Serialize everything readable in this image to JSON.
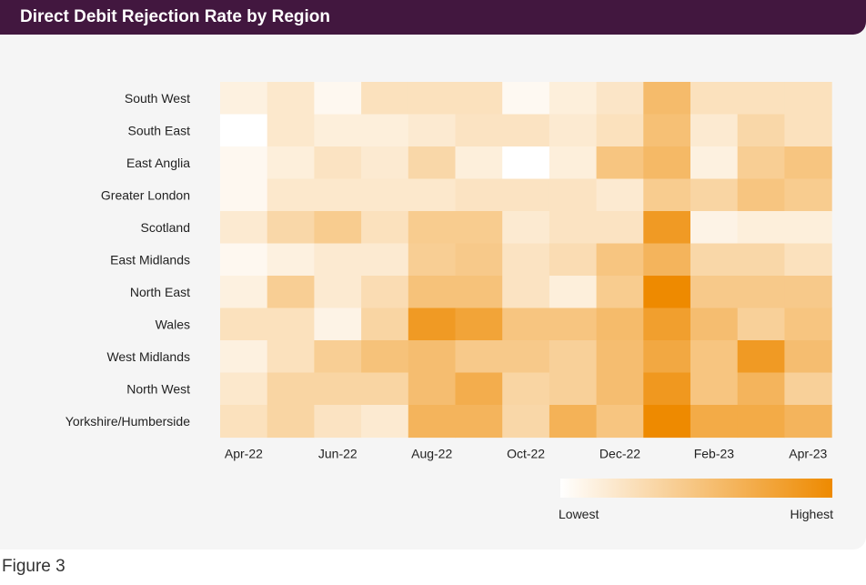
{
  "title": "Direct Debit Rejection Rate by Region",
  "figure_caption": "Figure 3",
  "legend": {
    "low_label": "Lowest",
    "high_label": "Highest",
    "low_color": "#ffffff",
    "high_color": "#ee8a00"
  },
  "colors": {
    "title_bar": "#42173f",
    "panel": "#f5f5f5"
  },
  "chart_data": {
    "type": "heatmap",
    "title": "Direct Debit Rejection Rate by Region",
    "value_scale": "relative intensity 0 (lowest) to 1 (highest)",
    "rows": [
      "South West",
      "South East",
      "East Anglia",
      "Greater London",
      "Scotland",
      "East Midlands",
      "North East",
      "Wales",
      "West Midlands",
      "North West",
      "Yorkshire/Humberside"
    ],
    "columns": [
      "Apr-22",
      "May-22",
      "Jun-22",
      "Jul-22",
      "Aug-22",
      "Sep-22",
      "Oct-22",
      "Nov-22",
      "Dec-22",
      "Jan-23",
      "Feb-23",
      "Mar-23",
      "Apr-23"
    ],
    "column_tick_labels": [
      "Apr-22",
      "",
      "Jun-22",
      "",
      "Aug-22",
      "",
      "Oct-22",
      "",
      "Dec-22",
      "",
      "Feb-23",
      "",
      "Apr-23"
    ],
    "values": [
      [
        0.12,
        0.2,
        0.06,
        0.26,
        0.26,
        0.26,
        0.05,
        0.14,
        0.22,
        0.58,
        0.26,
        0.26,
        0.26
      ],
      [
        0.0,
        0.2,
        0.14,
        0.14,
        0.18,
        0.24,
        0.24,
        0.18,
        0.26,
        0.54,
        0.18,
        0.34,
        0.26
      ],
      [
        0.06,
        0.14,
        0.24,
        0.18,
        0.34,
        0.14,
        0.0,
        0.14,
        0.5,
        0.6,
        0.12,
        0.42,
        0.5
      ],
      [
        0.06,
        0.2,
        0.2,
        0.2,
        0.2,
        0.24,
        0.24,
        0.24,
        0.18,
        0.44,
        0.36,
        0.5,
        0.44
      ],
      [
        0.18,
        0.34,
        0.44,
        0.26,
        0.44,
        0.44,
        0.18,
        0.24,
        0.24,
        0.86,
        0.1,
        0.14,
        0.14
      ],
      [
        0.06,
        0.12,
        0.18,
        0.18,
        0.42,
        0.46,
        0.24,
        0.3,
        0.5,
        0.64,
        0.34,
        0.34,
        0.26
      ],
      [
        0.12,
        0.42,
        0.18,
        0.3,
        0.52,
        0.52,
        0.24,
        0.14,
        0.44,
        1.0,
        0.46,
        0.46,
        0.46
      ],
      [
        0.26,
        0.26,
        0.1,
        0.36,
        0.86,
        0.78,
        0.5,
        0.5,
        0.58,
        0.82,
        0.56,
        0.4,
        0.5
      ],
      [
        0.12,
        0.26,
        0.42,
        0.52,
        0.56,
        0.46,
        0.46,
        0.4,
        0.56,
        0.74,
        0.5,
        0.86,
        0.56
      ],
      [
        0.2,
        0.36,
        0.36,
        0.36,
        0.56,
        0.7,
        0.36,
        0.4,
        0.56,
        0.88,
        0.5,
        0.64,
        0.4
      ],
      [
        0.26,
        0.36,
        0.24,
        0.18,
        0.64,
        0.64,
        0.34,
        0.66,
        0.5,
        1.0,
        0.72,
        0.72,
        0.64
      ]
    ]
  }
}
